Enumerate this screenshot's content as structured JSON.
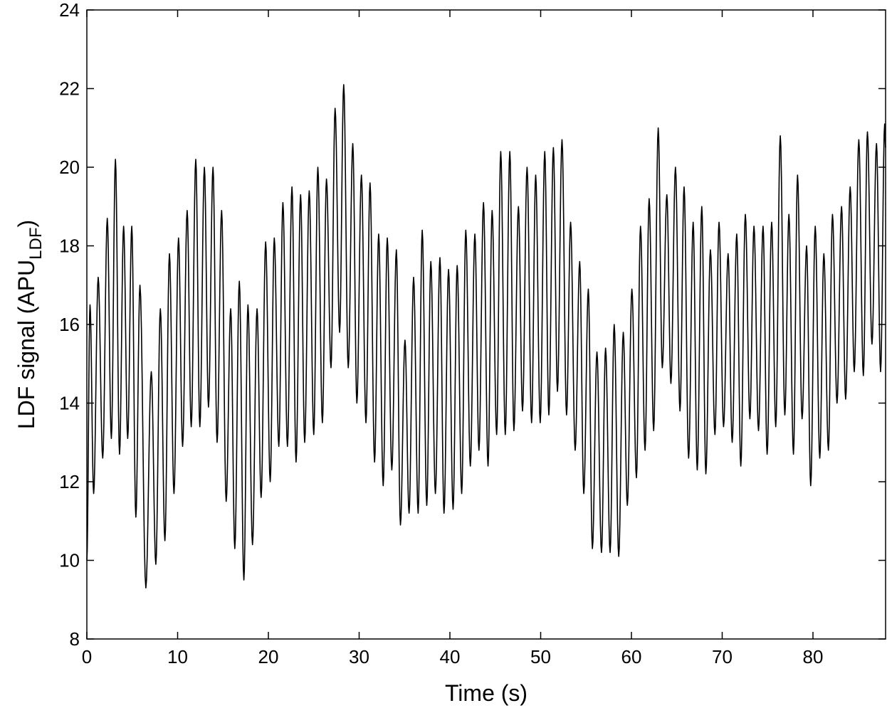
{
  "chart_data": {
    "type": "line",
    "title": "",
    "xlabel": "Time (s)",
    "ylabel": {
      "prefix": "LDF signal (APU",
      "subscript": "LDF",
      "suffix": ")"
    },
    "xlim": [
      0,
      88
    ],
    "ylim": [
      8,
      24
    ],
    "xticks": [
      0,
      10,
      20,
      30,
      40,
      50,
      60,
      70,
      80
    ],
    "yticks": [
      8,
      10,
      12,
      14,
      16,
      18,
      20,
      22,
      24
    ],
    "grid": false,
    "line_color": "#000000",
    "series": [
      {
        "extrema": [
          [
            0.0,
            10.0
          ],
          [
            0.35,
            16.5
          ],
          [
            0.75,
            11.7
          ],
          [
            1.25,
            17.2
          ],
          [
            1.75,
            12.6
          ],
          [
            2.25,
            18.7
          ],
          [
            2.7,
            13.1
          ],
          [
            3.15,
            20.2
          ],
          [
            3.6,
            12.7
          ],
          [
            4.05,
            18.5
          ],
          [
            4.5,
            13.1
          ],
          [
            4.95,
            18.5
          ],
          [
            5.4,
            11.1
          ],
          [
            5.85,
            17.0
          ],
          [
            6.5,
            9.3
          ],
          [
            7.1,
            14.8
          ],
          [
            7.6,
            9.9
          ],
          [
            8.1,
            16.4
          ],
          [
            8.6,
            10.5
          ],
          [
            9.1,
            17.8
          ],
          [
            9.6,
            11.7
          ],
          [
            10.1,
            18.2
          ],
          [
            10.55,
            12.9
          ],
          [
            11.05,
            18.9
          ],
          [
            11.5,
            13.4
          ],
          [
            12.0,
            20.2
          ],
          [
            12.45,
            13.4
          ],
          [
            12.95,
            20.0
          ],
          [
            13.4,
            13.9
          ],
          [
            13.9,
            20.0
          ],
          [
            14.35,
            13.0
          ],
          [
            14.85,
            18.9
          ],
          [
            15.35,
            11.5
          ],
          [
            15.85,
            16.4
          ],
          [
            16.3,
            10.3
          ],
          [
            16.8,
            17.1
          ],
          [
            17.3,
            9.5
          ],
          [
            17.75,
            16.5
          ],
          [
            18.25,
            10.4
          ],
          [
            18.75,
            16.4
          ],
          [
            19.2,
            11.6
          ],
          [
            19.7,
            18.1
          ],
          [
            20.2,
            12.0
          ],
          [
            20.65,
            18.2
          ],
          [
            21.15,
            12.9
          ],
          [
            21.6,
            19.1
          ],
          [
            22.1,
            12.9
          ],
          [
            22.6,
            19.5
          ],
          [
            23.05,
            12.5
          ],
          [
            23.55,
            19.3
          ],
          [
            24.0,
            13.0
          ],
          [
            24.5,
            19.4
          ],
          [
            25.0,
            13.2
          ],
          [
            25.45,
            20.0
          ],
          [
            25.95,
            13.5
          ],
          [
            26.4,
            19.7
          ],
          [
            26.9,
            14.9
          ],
          [
            27.35,
            21.5
          ],
          [
            27.85,
            15.8
          ],
          [
            28.3,
            22.1
          ],
          [
            28.8,
            14.9
          ],
          [
            29.3,
            20.6
          ],
          [
            29.75,
            14.0
          ],
          [
            30.25,
            19.8
          ],
          [
            30.75,
            13.5
          ],
          [
            31.2,
            19.6
          ],
          [
            31.7,
            12.5
          ],
          [
            32.15,
            18.3
          ],
          [
            32.65,
            11.9
          ],
          [
            33.1,
            18.2
          ],
          [
            33.6,
            12.3
          ],
          [
            34.1,
            17.9
          ],
          [
            34.55,
            10.9
          ],
          [
            35.05,
            15.6
          ],
          [
            35.5,
            11.2
          ],
          [
            36.0,
            17.2
          ],
          [
            36.5,
            11.2
          ],
          [
            36.95,
            18.4
          ],
          [
            37.45,
            11.4
          ],
          [
            37.9,
            17.6
          ],
          [
            38.4,
            11.7
          ],
          [
            38.9,
            17.7
          ],
          [
            39.35,
            11.2
          ],
          [
            39.85,
            17.4
          ],
          [
            40.35,
            11.3
          ],
          [
            40.8,
            17.5
          ],
          [
            41.3,
            11.7
          ],
          [
            41.75,
            18.4
          ],
          [
            42.25,
            12.4
          ],
          [
            42.75,
            18.3
          ],
          [
            43.2,
            12.8
          ],
          [
            43.7,
            19.1
          ],
          [
            44.2,
            12.4
          ],
          [
            44.65,
            18.9
          ],
          [
            45.15,
            13.2
          ],
          [
            45.6,
            20.4
          ],
          [
            46.1,
            13.2
          ],
          [
            46.6,
            20.4
          ],
          [
            47.05,
            13.3
          ],
          [
            47.55,
            19.0
          ],
          [
            48.0,
            13.8
          ],
          [
            48.5,
            20.0
          ],
          [
            49.0,
            13.5
          ],
          [
            49.45,
            19.8
          ],
          [
            49.95,
            13.5
          ],
          [
            50.45,
            20.4
          ],
          [
            50.9,
            13.7
          ],
          [
            51.4,
            20.5
          ],
          [
            51.85,
            14.3
          ],
          [
            52.35,
            20.7
          ],
          [
            52.85,
            13.7
          ],
          [
            53.3,
            18.6
          ],
          [
            53.8,
            12.8
          ],
          [
            54.3,
            17.6
          ],
          [
            54.75,
            11.7
          ],
          [
            55.25,
            16.9
          ],
          [
            55.7,
            10.3
          ],
          [
            56.2,
            15.3
          ],
          [
            56.7,
            10.2
          ],
          [
            57.15,
            15.4
          ],
          [
            57.65,
            10.2
          ],
          [
            58.1,
            16.0
          ],
          [
            58.6,
            10.1
          ],
          [
            59.1,
            15.8
          ],
          [
            59.55,
            11.4
          ],
          [
            60.05,
            16.9
          ],
          [
            60.55,
            12.1
          ],
          [
            61.0,
            18.5
          ],
          [
            61.5,
            12.8
          ],
          [
            61.95,
            19.2
          ],
          [
            62.45,
            13.3
          ],
          [
            62.95,
            21.0
          ],
          [
            63.4,
            14.9
          ],
          [
            63.9,
            19.3
          ],
          [
            64.35,
            14.5
          ],
          [
            64.85,
            20.0
          ],
          [
            65.35,
            13.8
          ],
          [
            65.8,
            19.5
          ],
          [
            66.3,
            12.6
          ],
          [
            66.8,
            18.6
          ],
          [
            67.25,
            12.3
          ],
          [
            67.75,
            19.0
          ],
          [
            68.2,
            12.2
          ],
          [
            68.7,
            17.9
          ],
          [
            69.2,
            13.2
          ],
          [
            69.65,
            18.6
          ],
          [
            70.15,
            13.4
          ],
          [
            70.65,
            17.8
          ],
          [
            71.1,
            13.0
          ],
          [
            71.6,
            18.3
          ],
          [
            72.05,
            12.4
          ],
          [
            72.55,
            18.8
          ],
          [
            73.05,
            13.6
          ],
          [
            73.5,
            18.5
          ],
          [
            74.0,
            13.3
          ],
          [
            74.5,
            18.5
          ],
          [
            74.95,
            12.7
          ],
          [
            75.45,
            18.6
          ],
          [
            75.9,
            13.4
          ],
          [
            76.4,
            20.8
          ],
          [
            76.9,
            13.7
          ],
          [
            77.35,
            18.8
          ],
          [
            77.85,
            12.7
          ],
          [
            78.3,
            19.8
          ],
          [
            78.8,
            13.6
          ],
          [
            79.3,
            18.0
          ],
          [
            79.75,
            11.9
          ],
          [
            80.25,
            18.5
          ],
          [
            80.75,
            12.6
          ],
          [
            81.2,
            17.8
          ],
          [
            81.7,
            12.8
          ],
          [
            82.15,
            18.8
          ],
          [
            82.65,
            14.0
          ],
          [
            83.15,
            19.0
          ],
          [
            83.6,
            14.1
          ],
          [
            84.1,
            19.5
          ],
          [
            84.55,
            14.8
          ],
          [
            85.05,
            20.7
          ],
          [
            85.55,
            14.7
          ],
          [
            86.0,
            20.9
          ],
          [
            86.5,
            15.5
          ],
          [
            87.0,
            20.6
          ],
          [
            87.45,
            14.8
          ],
          [
            87.9,
            21.1
          ],
          [
            88.0,
            20.5
          ]
        ]
      }
    ]
  }
}
